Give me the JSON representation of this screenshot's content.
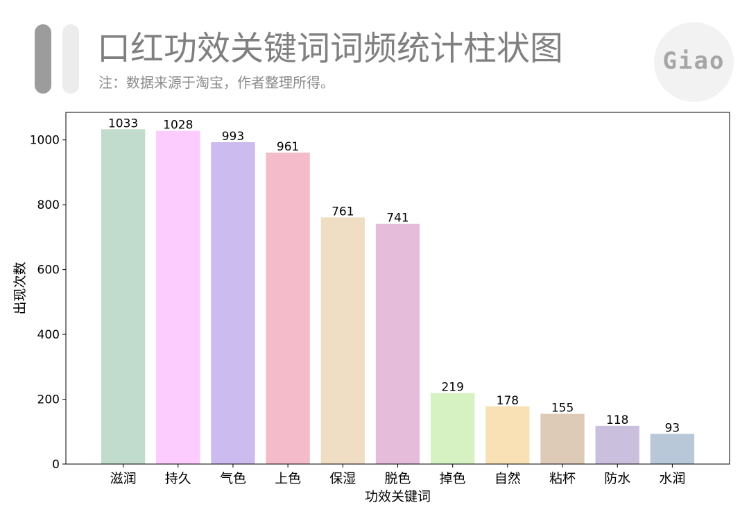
{
  "header": {
    "title": "口红功效关键词词频统计柱状图",
    "subtitle": "注：数据来源于淘宝，作者整理所得。",
    "logo_text": "Giao"
  },
  "chart_data": {
    "type": "bar",
    "categories": [
      "滋润",
      "持久",
      "气色",
      "上色",
      "保湿",
      "脱色",
      "掉色",
      "自然",
      "粘杯",
      "防水",
      "水润"
    ],
    "values": [
      1033,
      1028,
      993,
      961,
      761,
      741,
      219,
      178,
      155,
      118,
      93
    ],
    "colors": [
      "#c1dccc",
      "#fbccfd",
      "#ccbbee",
      "#f4bccb",
      "#efdec4",
      "#e5bcda",
      "#d6f2c2",
      "#f9e0b5",
      "#ddcbb7",
      "#cbbfde",
      "#b8c8d8"
    ],
    "xlabel": "功效关键词",
    "ylabel": "出现次数",
    "ylim": [
      0,
      1085
    ],
    "yticks": [
      0,
      200,
      400,
      600,
      800,
      1000
    ],
    "grid": false,
    "legend": "none"
  }
}
